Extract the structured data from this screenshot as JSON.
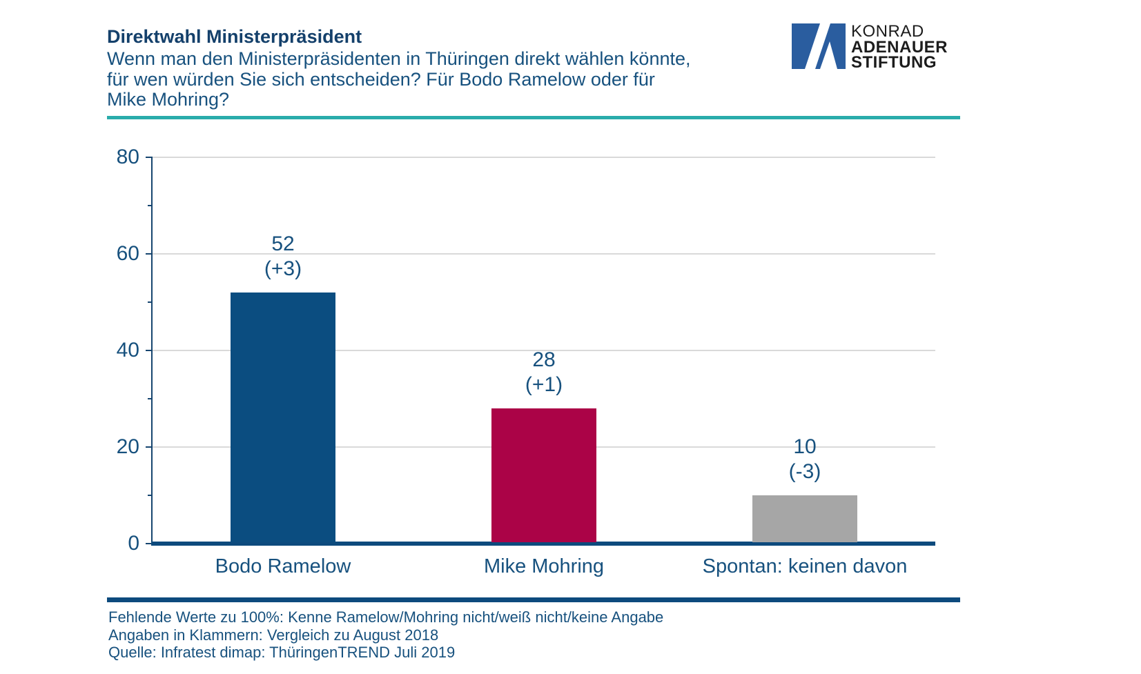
{
  "header": {
    "title": "Direktwahl Ministerpräsident",
    "subtitle_lines": [
      "Wenn man den Ministerpräsidenten in Thüringen direkt wählen könnte,",
      "für wen würden Sie sich entscheiden? Für Bodo Ramelow oder für",
      "Mike Mohring?"
    ]
  },
  "logo": {
    "mark": "kas-a-mark",
    "line1": "KONRAD",
    "line2": "ADENAUER",
    "line3": "STIFTUNG"
  },
  "colors": {
    "navy_dark": "#14406b",
    "navy_text": "#17517e",
    "teal": "#2aacab",
    "grid": "#d9d9d9",
    "axis": "#16456f",
    "baseline": "#0d4a7d",
    "logo_blue": "#2a5d9f",
    "black_text": "#1c1c1c"
  },
  "chart_data": {
    "type": "bar",
    "title": "Direktwahl Ministerpräsident",
    "categories": [
      "Bodo Ramelow",
      "Mike Mohring",
      "Spontan: keinen davon"
    ],
    "values": [
      52,
      28,
      10
    ],
    "change_labels": [
      "(+3)",
      "(+1)",
      "(-3)"
    ],
    "bar_colors": [
      "#0b4d80",
      "#ab0347",
      "#a6a6a6"
    ],
    "ylim": [
      0,
      80
    ],
    "yticks": [
      0,
      20,
      40,
      60,
      80
    ],
    "minor_yticks": [
      10,
      30,
      50,
      70
    ],
    "grid": "horizontal-major",
    "legend": "none",
    "xlabel": "",
    "ylabel": ""
  },
  "footer": {
    "lines": [
      "Fehlende Werte zu 100%: Kenne Ramelow/Mohring nicht/weiß nicht/keine Angabe",
      "Angaben in Klammern: Vergleich zu August 2018",
      "Quelle: Infratest dimap: ThüringenTREND Juli 2019"
    ]
  }
}
